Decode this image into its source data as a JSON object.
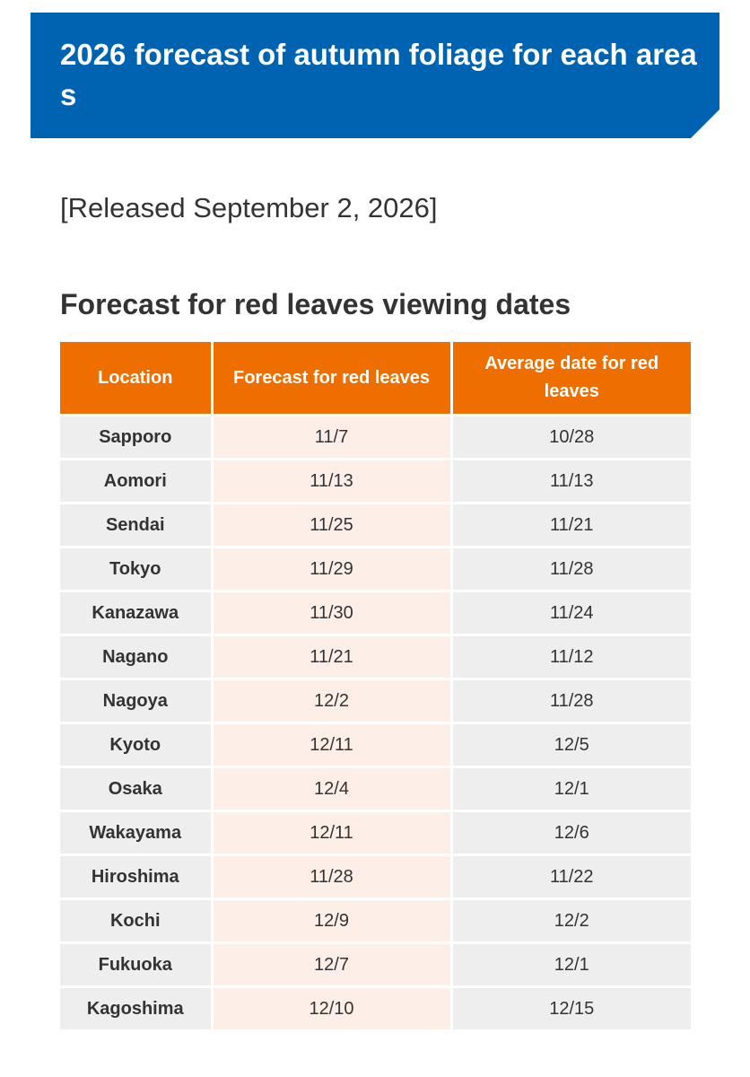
{
  "banner": {
    "title": "2026 forecast of autumn foliage for each areas",
    "color": "#0063b1"
  },
  "release_note": "[Released September 2, 2026]",
  "section_title": "Forecast for red leaves viewing dates",
  "table": {
    "header_color": "#ef6e00",
    "headers": {
      "location": "Location",
      "forecast": "Forecast for red leaves",
      "average": "Average date for red leaves"
    },
    "rows": [
      {
        "location": "Sapporo",
        "forecast": "11/7",
        "average": "10/28"
      },
      {
        "location": "Aomori",
        "forecast": "11/13",
        "average": "11/13"
      },
      {
        "location": "Sendai",
        "forecast": "11/25",
        "average": "11/21"
      },
      {
        "location": "Tokyo",
        "forecast": "11/29",
        "average": "11/28"
      },
      {
        "location": "Kanazawa",
        "forecast": "11/30",
        "average": "11/24"
      },
      {
        "location": "Nagano",
        "forecast": "11/21",
        "average": "11/12"
      },
      {
        "location": "Nagoya",
        "forecast": "12/2",
        "average": "11/28"
      },
      {
        "location": "Kyoto",
        "forecast": "12/11",
        "average": "12/5"
      },
      {
        "location": "Osaka",
        "forecast": "12/4",
        "average": "12/1"
      },
      {
        "location": "Wakayama",
        "forecast": "12/11",
        "average": "12/6"
      },
      {
        "location": "Hiroshima",
        "forecast": "11/28",
        "average": "11/22"
      },
      {
        "location": "Kochi",
        "forecast": "12/9",
        "average": "12/2"
      },
      {
        "location": "Fukuoka",
        "forecast": "12/7",
        "average": "12/1"
      },
      {
        "location": "Kagoshima",
        "forecast": "12/10",
        "average": "12/15"
      }
    ]
  }
}
